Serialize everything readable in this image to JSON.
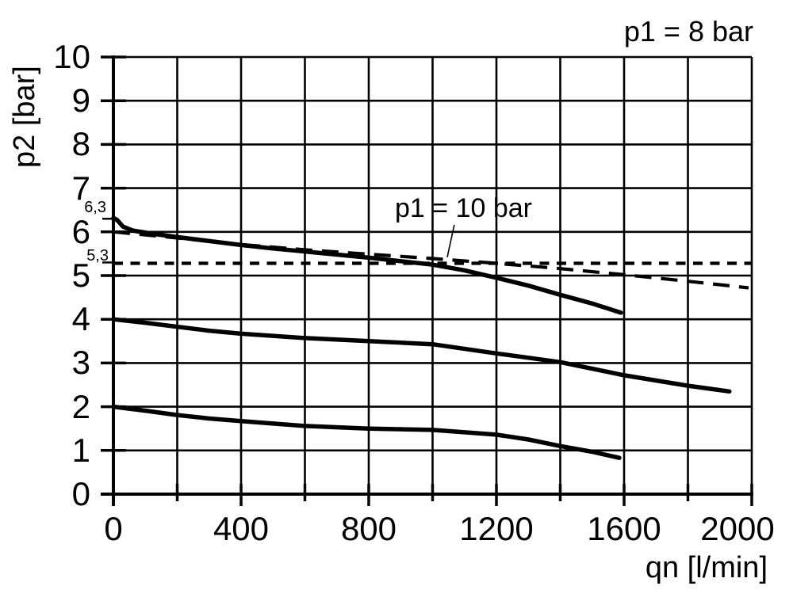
{
  "background_color": "#ffffff",
  "ink_color": "#000000",
  "chart_data": {
    "type": "line",
    "title": "p1 = 8 bar",
    "xlabel": "qn [l/min]",
    "ylabel": "p2 [bar]",
    "xlim": [
      0,
      2000
    ],
    "ylim": [
      0,
      10
    ],
    "x_tick_step": 200,
    "x_label_values": [
      0,
      400,
      800,
      1200,
      1600,
      2000
    ],
    "y_tick_step": 1,
    "y_label_values": [
      0,
      1,
      2,
      3,
      4,
      5,
      6,
      7,
      8,
      9,
      10
    ],
    "special_y_ticks": [
      {
        "value": 6.3,
        "label": "6,3"
      },
      {
        "value": 5.3,
        "label": "5,3"
      }
    ],
    "grid": "on",
    "legend_position": "none",
    "annotations": [
      {
        "text": "p1 = 10 bar",
        "leader_from": [
          1068,
          6.16
        ],
        "leader_to": [
          1046,
          5.42
        ]
      }
    ],
    "series": [
      {
        "name": "outlet setting 6.3 bar (p1 = 8 bar)",
        "style": "solid",
        "points": [
          [
            0,
            6.32
          ],
          [
            12,
            6.27
          ],
          [
            30,
            6.12
          ],
          [
            60,
            6.03
          ],
          [
            120,
            5.96
          ],
          [
            200,
            5.88
          ],
          [
            300,
            5.79
          ],
          [
            400,
            5.7
          ],
          [
            500,
            5.62
          ],
          [
            600,
            5.55
          ],
          [
            700,
            5.48
          ],
          [
            800,
            5.41
          ],
          [
            900,
            5.33
          ],
          [
            1000,
            5.25
          ],
          [
            1100,
            5.12
          ],
          [
            1200,
            4.95
          ],
          [
            1300,
            4.77
          ],
          [
            1400,
            4.56
          ],
          [
            1500,
            4.36
          ],
          [
            1590,
            4.15
          ]
        ]
      },
      {
        "name": "p1 = 10 bar",
        "style": "long-dash",
        "points": [
          [
            0,
            6.0
          ],
          [
            200,
            5.86
          ],
          [
            400,
            5.71
          ],
          [
            600,
            5.59
          ],
          [
            800,
            5.49
          ],
          [
            1000,
            5.39
          ],
          [
            1200,
            5.28
          ],
          [
            1400,
            5.16
          ],
          [
            1600,
            5.02
          ],
          [
            1800,
            4.87
          ],
          [
            1990,
            4.72
          ]
        ]
      },
      {
        "name": "reference line 5.3 bar",
        "style": "short-dash",
        "points": [
          [
            0,
            5.28
          ],
          [
            2000,
            5.28
          ]
        ]
      },
      {
        "name": "outlet setting 4 bar",
        "style": "solid",
        "points": [
          [
            0,
            4.0
          ],
          [
            100,
            3.92
          ],
          [
            200,
            3.83
          ],
          [
            300,
            3.74
          ],
          [
            400,
            3.67
          ],
          [
            600,
            3.57
          ],
          [
            800,
            3.5
          ],
          [
            1000,
            3.43
          ],
          [
            1200,
            3.22
          ],
          [
            1400,
            3.02
          ],
          [
            1600,
            2.72
          ],
          [
            1800,
            2.48
          ],
          [
            1930,
            2.35
          ]
        ]
      },
      {
        "name": "outlet setting 2 bar",
        "style": "solid",
        "points": [
          [
            0,
            2.0
          ],
          [
            100,
            1.91
          ],
          [
            200,
            1.81
          ],
          [
            300,
            1.73
          ],
          [
            400,
            1.67
          ],
          [
            600,
            1.56
          ],
          [
            800,
            1.5
          ],
          [
            1000,
            1.47
          ],
          [
            1200,
            1.36
          ],
          [
            1300,
            1.25
          ],
          [
            1400,
            1.1
          ],
          [
            1500,
            0.97
          ],
          [
            1585,
            0.83
          ]
        ]
      }
    ]
  }
}
